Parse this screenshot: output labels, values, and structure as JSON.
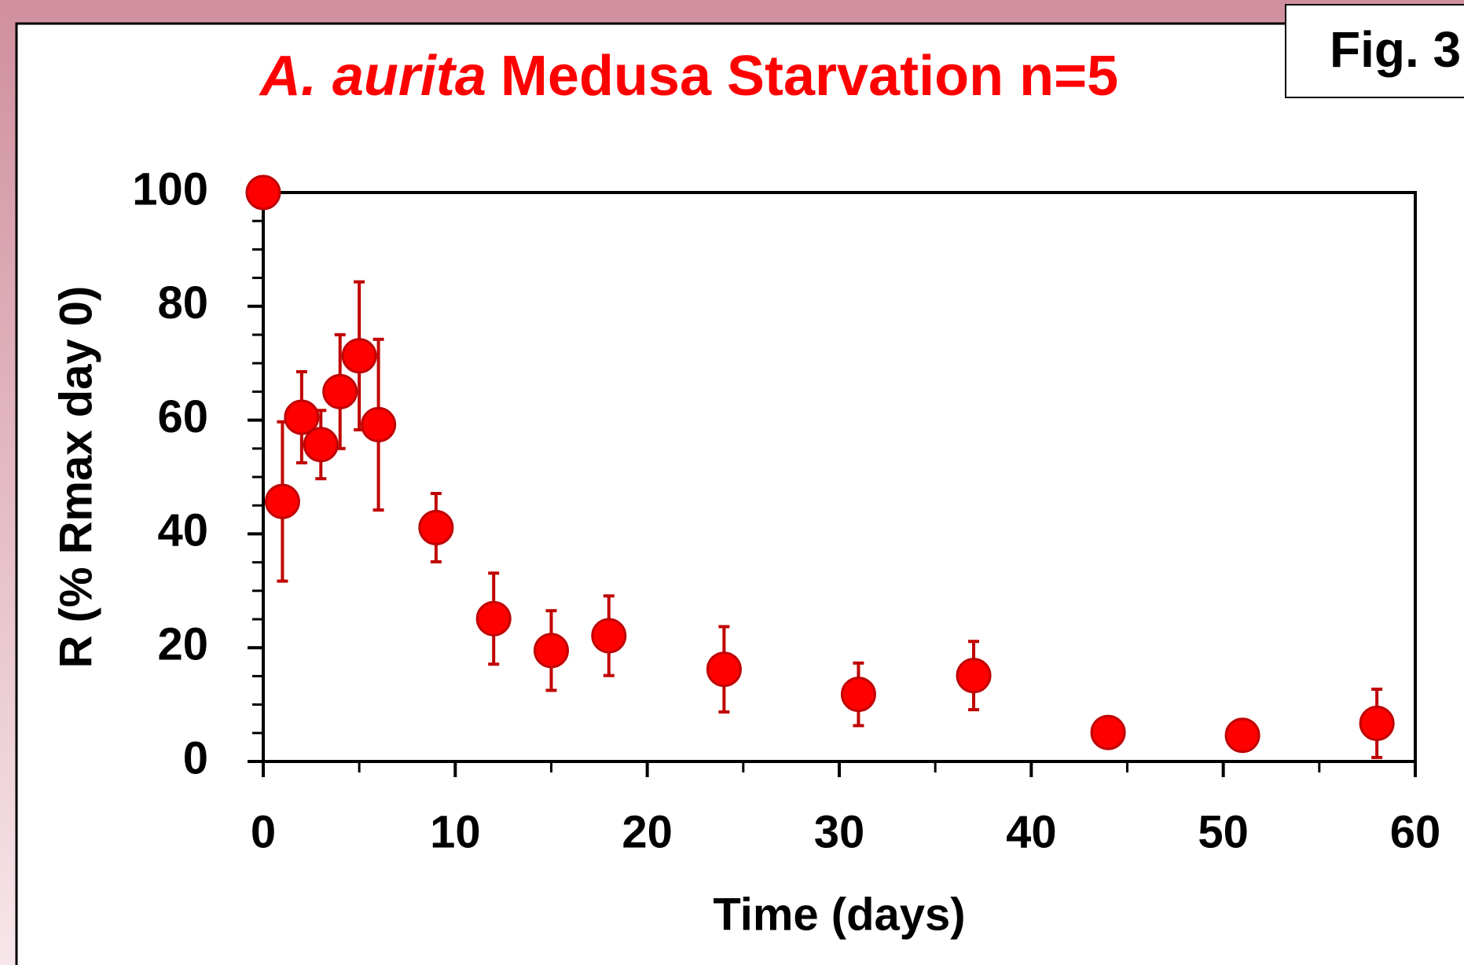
{
  "chart_data": {
    "type": "scatter",
    "title_italic": "A. aurita",
    "title": "Medusa Starvation n=5",
    "annotation": "Fig. 3",
    "x_label": "Time (days)",
    "y_label": "R (% Rmax day 0)",
    "x": [
      0,
      1,
      2,
      3,
      4,
      5,
      6,
      9,
      12,
      15,
      18,
      24,
      31,
      37,
      44,
      51,
      58
    ],
    "series": [
      {
        "name": "R",
        "color": "#ff0000",
        "values": [
          100,
          45.7,
          60.5,
          55.7,
          65,
          71.3,
          59.2,
          41.1,
          25.1,
          19.5,
          22.1,
          16.2,
          11.8,
          15.1,
          5.1,
          4.6,
          6.7
        ],
        "errors": [
          null,
          14,
          8,
          6,
          10,
          13,
          15,
          6,
          8,
          7,
          7,
          7.5,
          5.5,
          6,
          null,
          null,
          6
        ]
      }
    ],
    "error_color": "#c00000",
    "xlim": [
      0,
      60
    ],
    "xticks": [
      0,
      10,
      20,
      30,
      40,
      50,
      60
    ],
    "xminorticks": [
      5,
      15,
      25,
      35,
      45,
      55
    ],
    "ylim": [
      0,
      100
    ],
    "yticks": [
      0,
      20,
      40,
      60,
      80,
      100
    ],
    "yminorticks": [
      5,
      10,
      15,
      25,
      30,
      35,
      45,
      50,
      55,
      65,
      70,
      75,
      85,
      90,
      95
    ]
  }
}
